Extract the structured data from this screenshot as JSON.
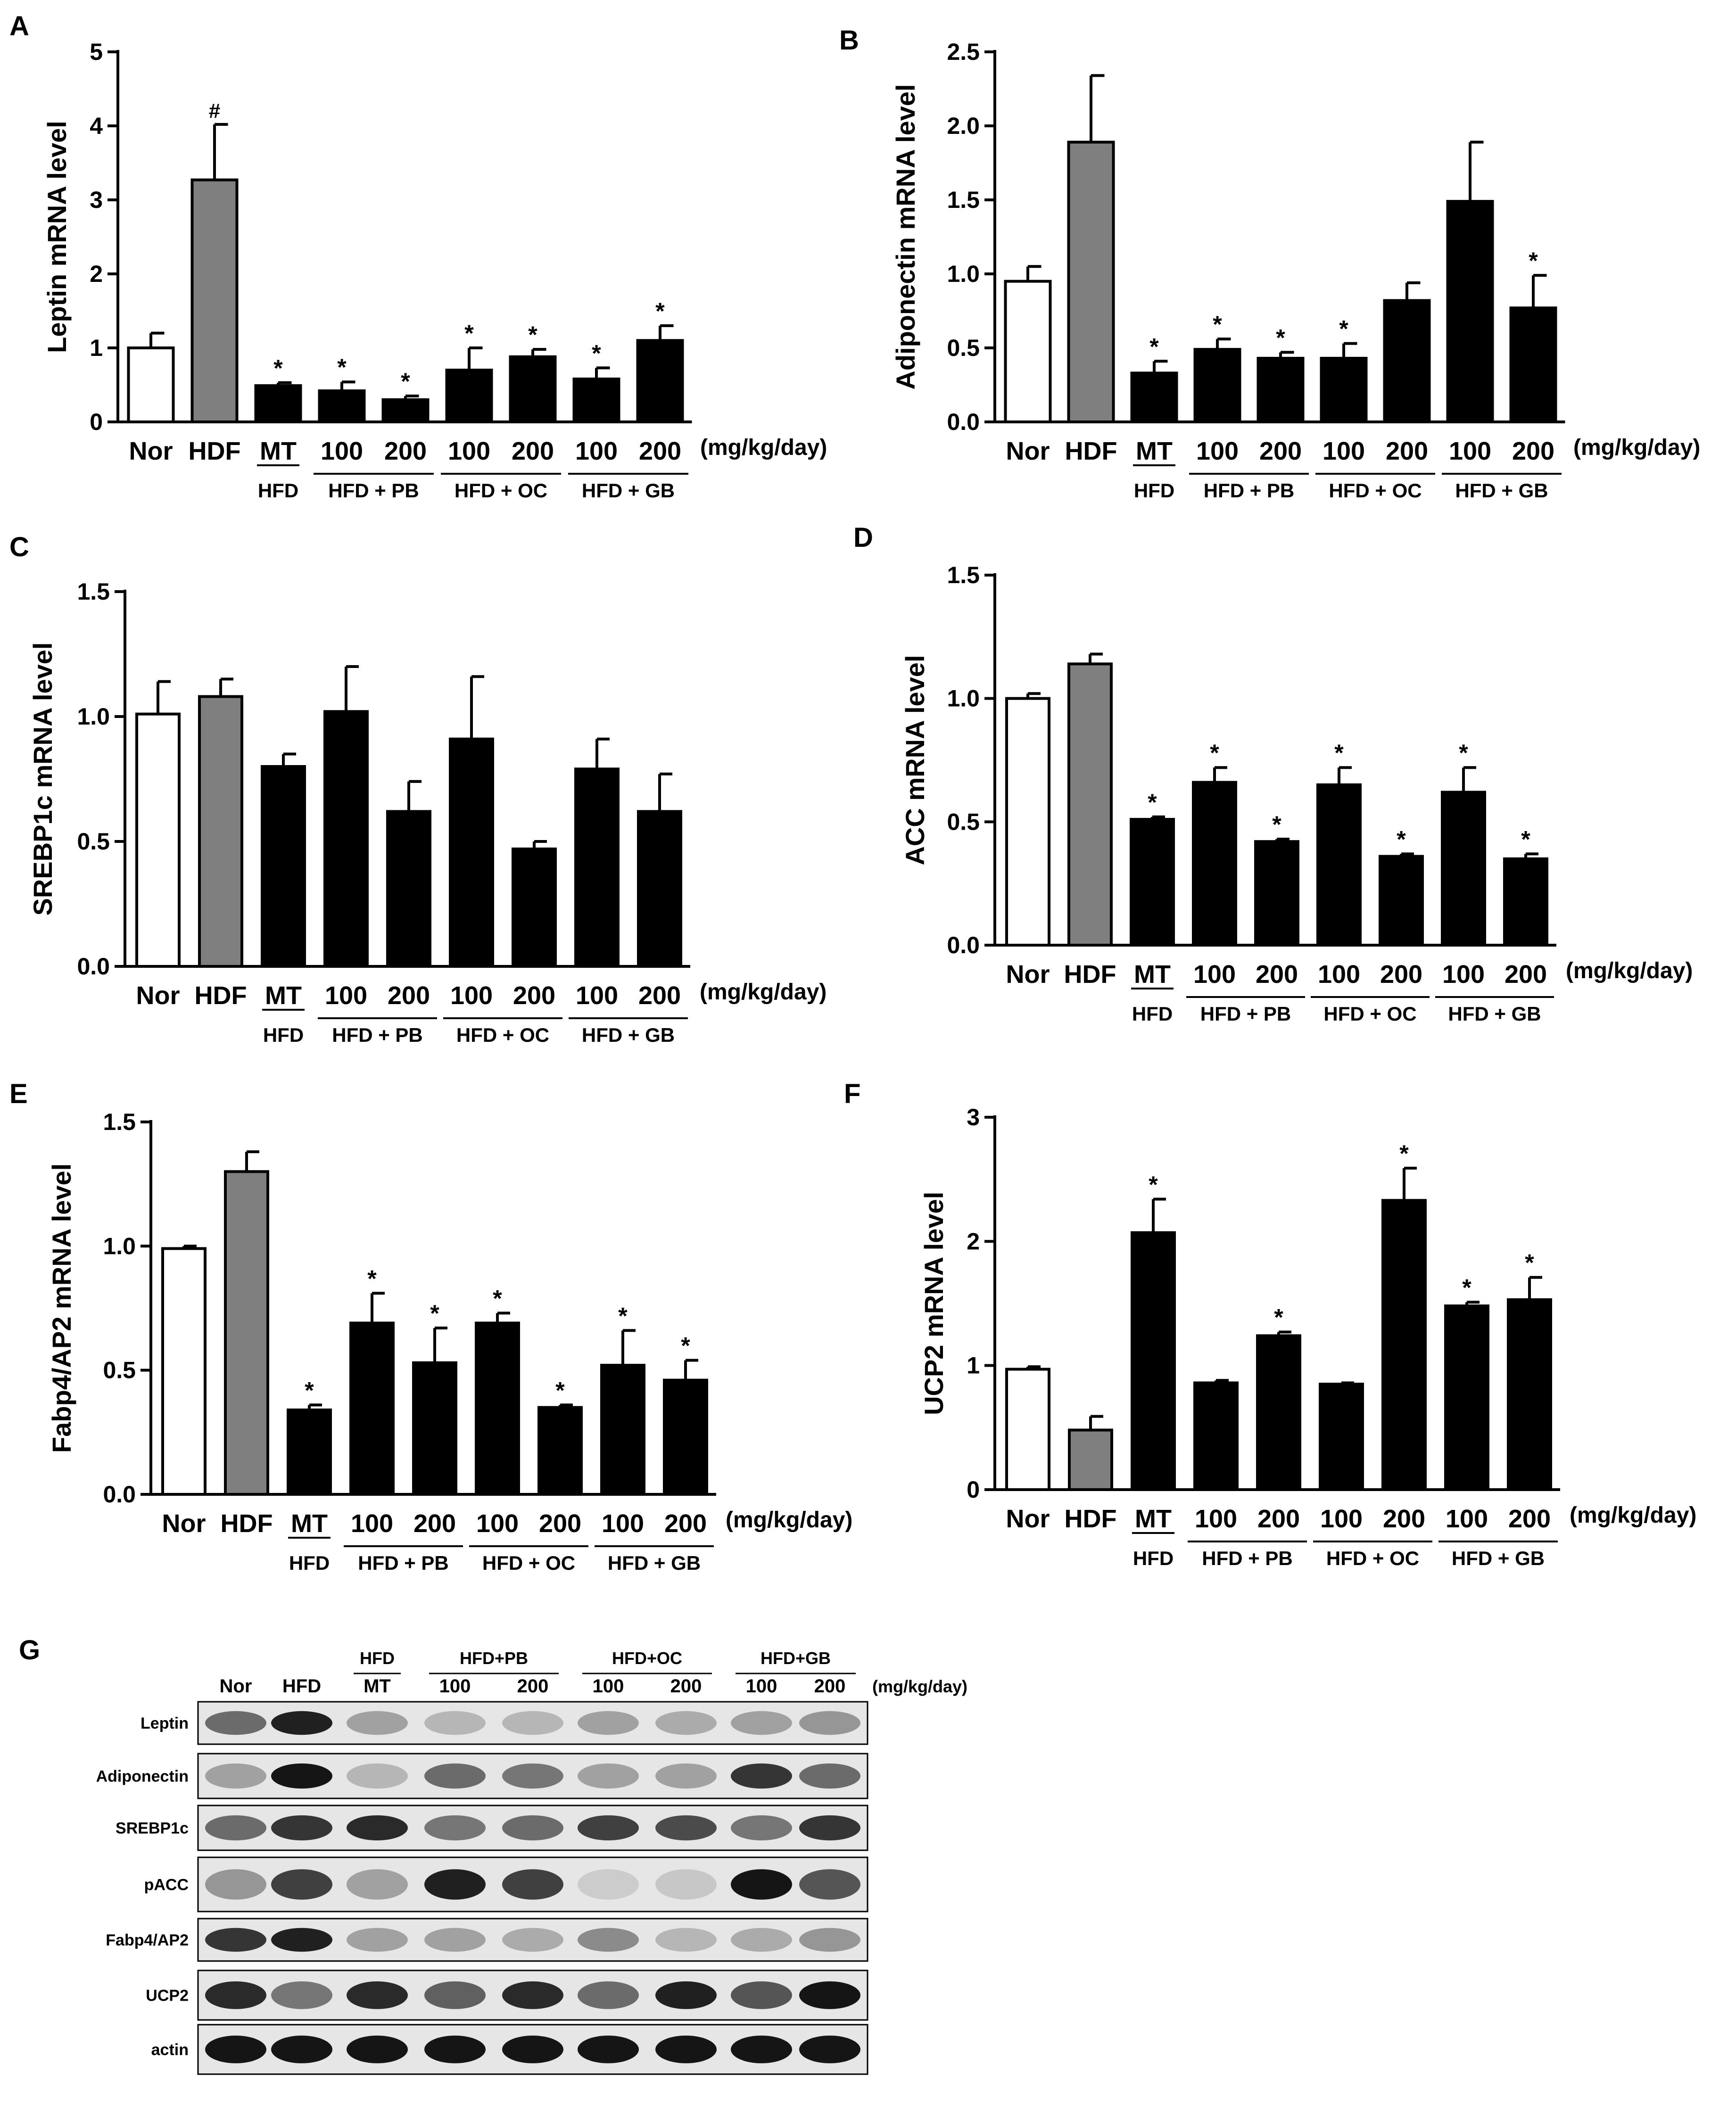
{
  "chart_data": [
    {
      "panel": "A",
      "type": "bar",
      "ylabel": "Leptin mRNA level",
      "ylim": [
        0,
        5
      ],
      "yticks": [
        "0",
        "1",
        "2",
        "3",
        "4",
        "5"
      ],
      "tick_values": [
        0,
        1,
        2,
        3,
        4,
        5
      ],
      "categories": [
        "Nor",
        "HDF",
        "MT",
        "100",
        "200",
        "100",
        "200",
        "100",
        "200"
      ],
      "fills": [
        "white",
        "gray",
        "black",
        "black",
        "black",
        "black",
        "black",
        "black",
        "black"
      ],
      "values": [
        1.0,
        3.27,
        0.49,
        0.42,
        0.3,
        0.7,
        0.88,
        0.58,
        1.1
      ],
      "errors": [
        0.2,
        0.75,
        0.04,
        0.12,
        0.05,
        0.3,
        0.1,
        0.15,
        0.2
      ],
      "marks": [
        "",
        "#",
        "*",
        "*",
        "*",
        "*",
        "*",
        "*",
        "*"
      ],
      "groups": [
        "HFD",
        "HFD + PB",
        "HFD + OC",
        "HFD + GB"
      ],
      "unit": "(mg/kg/day)"
    },
    {
      "panel": "B",
      "type": "bar",
      "ylabel": "Adiponectin mRNA level",
      "ylim": [
        0,
        2.5
      ],
      "yticks": [
        "0.0",
        "0.5",
        "1.0",
        "1.5",
        "2.0",
        "2.5"
      ],
      "tick_values": [
        0,
        0.5,
        1.0,
        1.5,
        2.0,
        2.5
      ],
      "categories": [
        "Nor",
        "HDF",
        "MT",
        "100",
        "200",
        "100",
        "200",
        "100",
        "200"
      ],
      "fills": [
        "white",
        "gray",
        "black",
        "black",
        "black",
        "black",
        "black",
        "black",
        "black"
      ],
      "values": [
        0.95,
        1.89,
        0.33,
        0.49,
        0.43,
        0.43,
        0.82,
        1.49,
        0.77
      ],
      "errors": [
        0.1,
        0.45,
        0.08,
        0.07,
        0.04,
        0.1,
        0.12,
        0.4,
        0.22
      ],
      "marks": [
        "",
        "",
        "*",
        "*",
        "*",
        "*",
        "",
        "",
        "*"
      ],
      "groups": [
        "HFD",
        "HFD + PB",
        "HFD + OC",
        "HFD + GB"
      ],
      "unit": "(mg/kg/day)"
    },
    {
      "panel": "C",
      "type": "bar",
      "ylabel": "SREBP1c mRNA level",
      "ylim": [
        0,
        1.5
      ],
      "yticks": [
        "0.0",
        "0.5",
        "1.0",
        "1.5"
      ],
      "tick_values": [
        0,
        0.5,
        1.0,
        1.5
      ],
      "categories": [
        "Nor",
        "HDF",
        "MT",
        "100",
        "200",
        "100",
        "200",
        "100",
        "200"
      ],
      "fills": [
        "white",
        "gray",
        "black",
        "black",
        "black",
        "black",
        "black",
        "black",
        "black"
      ],
      "values": [
        1.01,
        1.08,
        0.8,
        1.02,
        0.62,
        0.91,
        0.47,
        0.79,
        0.62
      ],
      "errors": [
        0.13,
        0.07,
        0.05,
        0.18,
        0.12,
        0.25,
        0.03,
        0.12,
        0.15
      ],
      "marks": [
        "",
        "",
        "",
        "",
        "",
        "",
        "",
        "",
        ""
      ],
      "groups": [
        "HFD",
        "HFD + PB",
        "HFD + OC",
        "HFD + GB"
      ],
      "unit": "(mg/kg/day)"
    },
    {
      "panel": "D",
      "type": "bar",
      "ylabel": "ACC mRNA level",
      "ylim": [
        0,
        1.5
      ],
      "yticks": [
        "0.0",
        "0.5",
        "1.0",
        "1.5"
      ],
      "tick_values": [
        0,
        0.5,
        1.0,
        1.5
      ],
      "categories": [
        "Nor",
        "HDF",
        "MT",
        "100",
        "200",
        "100",
        "200",
        "100",
        "200"
      ],
      "fills": [
        "white",
        "gray",
        "black",
        "black",
        "black",
        "black",
        "black",
        "black",
        "black"
      ],
      "values": [
        1.0,
        1.14,
        0.51,
        0.66,
        0.42,
        0.65,
        0.36,
        0.62,
        0.35
      ],
      "errors": [
        0.02,
        0.04,
        0.01,
        0.06,
        0.01,
        0.07,
        0.01,
        0.1,
        0.02
      ],
      "marks": [
        "",
        "",
        "*",
        "*",
        "*",
        "*",
        "*",
        "*",
        "*"
      ],
      "groups": [
        "HFD",
        "HFD + PB",
        "HFD + OC",
        "HFD + GB"
      ],
      "unit": "(mg/kg/day)"
    },
    {
      "panel": "E",
      "type": "bar",
      "ylabel": "Fabp4/AP2 mRNA level",
      "ylim": [
        0,
        1.5
      ],
      "yticks": [
        "0.0",
        "0.5",
        "1.0",
        "1.5"
      ],
      "tick_values": [
        0,
        0.5,
        1.0,
        1.5
      ],
      "categories": [
        "Nor",
        "HDF",
        "MT",
        "100",
        "200",
        "100",
        "200",
        "100",
        "200"
      ],
      "fills": [
        "white",
        "gray",
        "black",
        "black",
        "black",
        "black",
        "black",
        "black",
        "black"
      ],
      "values": [
        0.99,
        1.3,
        0.34,
        0.69,
        0.53,
        0.69,
        0.35,
        0.52,
        0.46
      ],
      "errors": [
        0.01,
        0.08,
        0.02,
        0.12,
        0.14,
        0.04,
        0.01,
        0.14,
        0.08
      ],
      "marks": [
        "",
        "",
        "*",
        "*",
        "*",
        "*",
        "*",
        "*",
        "*"
      ],
      "groups": [
        "HFD",
        "HFD + PB",
        "HFD + OC",
        "HFD + GB"
      ],
      "unit": "(mg/kg/day)"
    },
    {
      "panel": "F",
      "type": "bar",
      "ylabel": "UCP2 mRNA level",
      "ylim": [
        0,
        3
      ],
      "yticks": [
        "0",
        "1",
        "2",
        "3"
      ],
      "tick_values": [
        0,
        1,
        2,
        3
      ],
      "categories": [
        "Nor",
        "HDF",
        "MT",
        "100",
        "200",
        "100",
        "200",
        "100",
        "200"
      ],
      "fills": [
        "white",
        "gray",
        "black",
        "black",
        "black",
        "black",
        "black",
        "black",
        "black"
      ],
      "values": [
        0.97,
        0.48,
        2.07,
        0.86,
        1.24,
        0.85,
        2.33,
        1.48,
        1.53
      ],
      "errors": [
        0.02,
        0.11,
        0.27,
        0.02,
        0.03,
        0.01,
        0.26,
        0.03,
        0.18
      ],
      "marks": [
        "",
        "",
        "*",
        "",
        "*",
        "",
        "*",
        "*",
        "*"
      ],
      "groups": [
        "HFD",
        "HFD + PB",
        "HFD + OC",
        "HFD + GB"
      ],
      "unit": "(mg/kg/day)"
    }
  ],
  "western_blot": {
    "panel": "G",
    "lanes": [
      "Nor",
      "HFD",
      "MT",
      "100",
      "200",
      "100",
      "200",
      "100",
      "200"
    ],
    "groups": [
      "HFD",
      "HFD+PB",
      "HFD+OC",
      "HFD+GB"
    ],
    "unit": "(mg/kg/day)",
    "proteins": [
      "Leptin",
      "Adiponectin",
      "SREBP1c",
      "pACC",
      "Fabp4/AP2",
      "UCP2",
      "actin"
    ],
    "intensity": [
      [
        0.55,
        0.9,
        0.3,
        0.2,
        0.2,
        0.3,
        0.25,
        0.3,
        0.35
      ],
      [
        0.3,
        0.95,
        0.2,
        0.55,
        0.5,
        0.3,
        0.3,
        0.8,
        0.55
      ],
      [
        0.55,
        0.8,
        0.85,
        0.5,
        0.55,
        0.75,
        0.7,
        0.5,
        0.8
      ],
      [
        0.35,
        0.75,
        0.3,
        0.9,
        0.75,
        0.1,
        0.12,
        0.95,
        0.65
      ],
      [
        0.8,
        0.9,
        0.3,
        0.3,
        0.25,
        0.4,
        0.2,
        0.25,
        0.35
      ],
      [
        0.85,
        0.5,
        0.85,
        0.6,
        0.85,
        0.55,
        0.9,
        0.65,
        0.95
      ],
      [
        0.95,
        0.95,
        0.95,
        0.95,
        0.95,
        0.95,
        0.95,
        0.95,
        0.95
      ]
    ]
  }
}
